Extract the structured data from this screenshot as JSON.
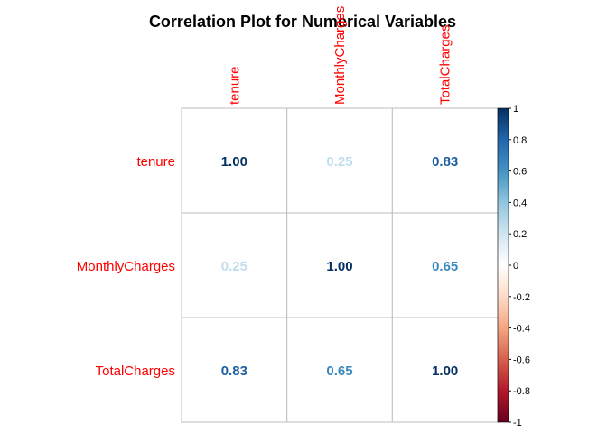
{
  "chart_data": {
    "type": "heatmap",
    "title": "Correlation Plot for Numerical Variables",
    "variables": [
      "tenure",
      "MonthlyCharges",
      "TotalCharges"
    ],
    "matrix": [
      [
        1.0,
        0.25,
        0.83
      ],
      [
        0.25,
        1.0,
        0.65
      ],
      [
        0.83,
        0.65,
        1.0
      ]
    ],
    "value_labels": [
      [
        "1.00",
        "0.25",
        "0.83"
      ],
      [
        "0.25",
        "1.00",
        "0.65"
      ],
      [
        "0.83",
        "0.65",
        "1.00"
      ]
    ],
    "colorbar": {
      "range": [
        -1,
        1
      ],
      "ticks": [
        "1",
        "0.8",
        "0.6",
        "0.4",
        "0.2",
        "0",
        "-0.2",
        "-0.4",
        "-0.6",
        "-0.8",
        "-1"
      ],
      "colors": [
        "#67001F",
        "#B2182B",
        "#D6604D",
        "#F4A582",
        "#FDDBC7",
        "#FFFFFF",
        "#D1E5F0",
        "#92C5DE",
        "#4393C3",
        "#2166AC",
        "#053061"
      ]
    },
    "label_color": "#FF0000",
    "grid_color": "#BEBEBE"
  }
}
